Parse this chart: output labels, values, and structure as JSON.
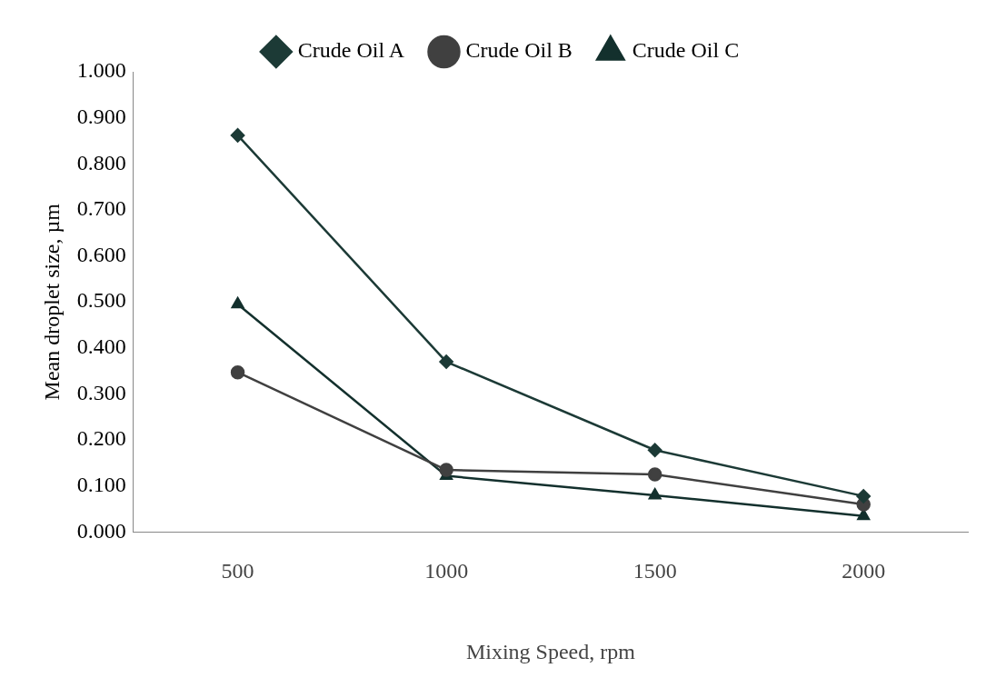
{
  "chart_data": {
    "type": "line",
    "xlabel": "Mixing Speed, rpm",
    "ylabel": "Mean droplet size, µm",
    "categories": [
      "500",
      "1000",
      "1500",
      "2000"
    ],
    "series": [
      {
        "name": "Crude Oil A",
        "color": "#1c3a36",
        "marker": "diamond",
        "values": [
          0.862,
          0.37,
          0.178,
          0.078
        ]
      },
      {
        "name": "Crude Oil B",
        "color": "#404040",
        "marker": "circle",
        "values": [
          0.347,
          0.135,
          0.125,
          0.06
        ]
      },
      {
        "name": "Crude Oil C",
        "color": "#13302d",
        "marker": "triangle",
        "values": [
          0.495,
          0.122,
          0.08,
          0.035
        ]
      }
    ],
    "ylim": [
      0,
      1
    ],
    "yticks": [
      {
        "value": 0,
        "label": "0.000"
      },
      {
        "value": 0.1,
        "label": "0.100"
      },
      {
        "value": 0.2,
        "label": "0.200"
      },
      {
        "value": 0.3,
        "label": "0.300"
      },
      {
        "value": 0.4,
        "label": "0.400"
      },
      {
        "value": 0.5,
        "label": "0.500"
      },
      {
        "value": 0.6,
        "label": "0.600"
      },
      {
        "value": 0.7,
        "label": "0.700"
      },
      {
        "value": 0.8,
        "label": "0.800"
      },
      {
        "value": 0.9,
        "label": "0.900"
      },
      {
        "value": 1,
        "label": "1.000"
      }
    ],
    "grid": false,
    "legend": "top",
    "line_style": "solid"
  }
}
